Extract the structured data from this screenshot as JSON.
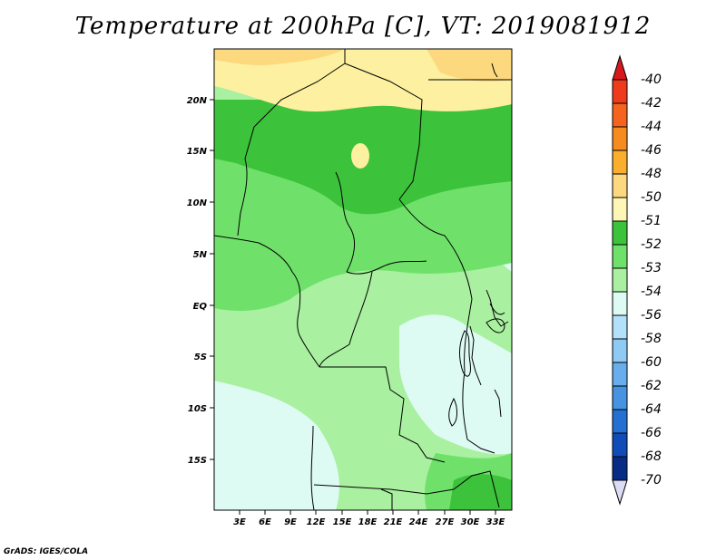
{
  "title": "Temperature at 200hPa [C], VT: 2019081912",
  "footer": "GrADS: IGES/COLA",
  "lat_ticks": [
    "20N",
    "15N",
    "10N",
    "5N",
    "EQ",
    "5S",
    "10S",
    "15S"
  ],
  "lon_ticks": [
    "3E",
    "6E",
    "9E",
    "12E",
    "15E",
    "18E",
    "21E",
    "24E",
    "27E",
    "30E",
    "33E"
  ],
  "colorbar": {
    "labels": [
      "-40",
      "-42",
      "-44",
      "-46",
      "-48",
      "-50",
      "-51",
      "-52",
      "-53",
      "-54",
      "-56",
      "-58",
      "-60",
      "-62",
      "-64",
      "-66",
      "-68",
      "-70"
    ],
    "colors": [
      "#d7191c",
      "#ef3b1b",
      "#f4641e",
      "#f68c1f",
      "#f9af2d",
      "#fcd87e",
      "#fdf6b5",
      "#3dc23b",
      "#6fe16a",
      "#a9f0a0",
      "#ddfbf2",
      "#b3e1fb",
      "#8fcaf4",
      "#68aeec",
      "#4593e1",
      "#2470d2",
      "#0f4cb8",
      "#082b85",
      "#dcdcf5"
    ]
  },
  "regions": [
    {
      "name": "hot-north",
      "color": "#fdf0a0"
    },
    {
      "name": "warm-north",
      "color": "#fcd87e"
    },
    {
      "name": "green-52",
      "color": "#3dc23b"
    },
    {
      "name": "green-53",
      "color": "#6fe16a"
    },
    {
      "name": "green-54",
      "color": "#a9f0a0"
    },
    {
      "name": "cyan-56",
      "color": "#ddfbf2"
    }
  ]
}
